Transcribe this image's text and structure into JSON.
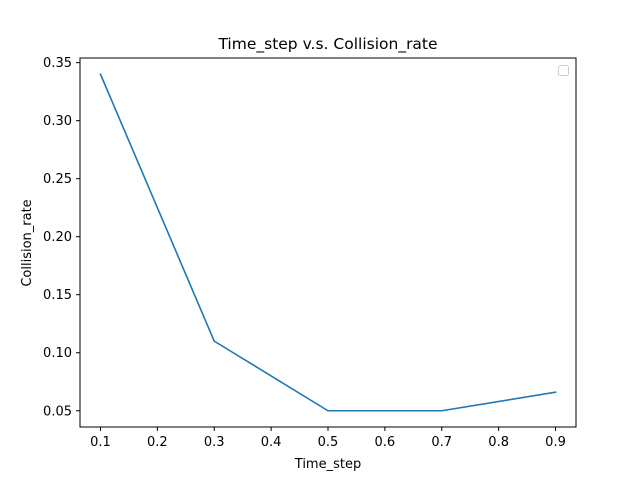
{
  "chart_data": {
    "type": "line",
    "title": "Time_step v.s. Collision_rate",
    "xlabel": "Time_step",
    "ylabel": "Collision_rate",
    "xlim": [
      0.064,
      0.936
    ],
    "ylim": [
      0.036,
      0.354
    ],
    "xticks": [
      "0.1",
      "0.2",
      "0.3",
      "0.4",
      "0.5",
      "0.6",
      "0.7",
      "0.8",
      "0.9"
    ],
    "yticks": [
      "0.05",
      "0.10",
      "0.15",
      "0.20",
      "0.25",
      "0.30",
      "0.35"
    ],
    "grid": false,
    "legend": "top-right, empty",
    "series": [
      {
        "color": "#1f77b4",
        "x": [
          0.1,
          0.3,
          0.5,
          0.7,
          0.9
        ],
        "y": [
          0.34,
          0.11,
          0.05,
          0.05,
          0.066
        ]
      }
    ]
  }
}
